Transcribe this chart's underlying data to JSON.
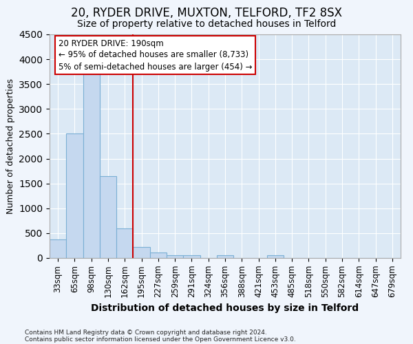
{
  "title1": "20, RYDER DRIVE, MUXTON, TELFORD, TF2 8SX",
  "title2": "Size of property relative to detached houses in Telford",
  "xlabel": "Distribution of detached houses by size in Telford",
  "ylabel": "Number of detached properties",
  "footnote1": "Contains HM Land Registry data © Crown copyright and database right 2024.",
  "footnote2": "Contains public sector information licensed under the Open Government Licence v3.0.",
  "categories": [
    "33sqm",
    "65sqm",
    "98sqm",
    "130sqm",
    "162sqm",
    "195sqm",
    "227sqm",
    "259sqm",
    "291sqm",
    "324sqm",
    "356sqm",
    "388sqm",
    "421sqm",
    "453sqm",
    "485sqm",
    "518sqm",
    "550sqm",
    "582sqm",
    "614sqm",
    "647sqm",
    "679sqm"
  ],
  "values": [
    370,
    2500,
    3750,
    1650,
    600,
    220,
    110,
    60,
    50,
    0,
    60,
    0,
    0,
    60,
    0,
    0,
    0,
    0,
    0,
    0,
    0
  ],
  "bar_color": "#c5d8ef",
  "bar_edge_color": "#7aafd4",
  "vline_x_index": 5,
  "vline_color": "#cc0000",
  "annotation_line1": "20 RYDER DRIVE: 190sqm",
  "annotation_line2": "← 95% of detached houses are smaller (8,733)",
  "annotation_line3": "5% of semi-detached houses are larger (454) →",
  "annotation_box_color": "#cc0000",
  "ylim": [
    0,
    4500
  ],
  "yticks": [
    0,
    500,
    1000,
    1500,
    2000,
    2500,
    3000,
    3500,
    4000,
    4500
  ],
  "background_color": "#dce9f5",
  "fig_background_color": "#f0f5fc",
  "grid_color": "#ffffff",
  "title_fontsize": 12,
  "subtitle_fontsize": 10,
  "tick_fontsize": 8.5,
  "ylabel_fontsize": 9,
  "xlabel_fontsize": 10
}
